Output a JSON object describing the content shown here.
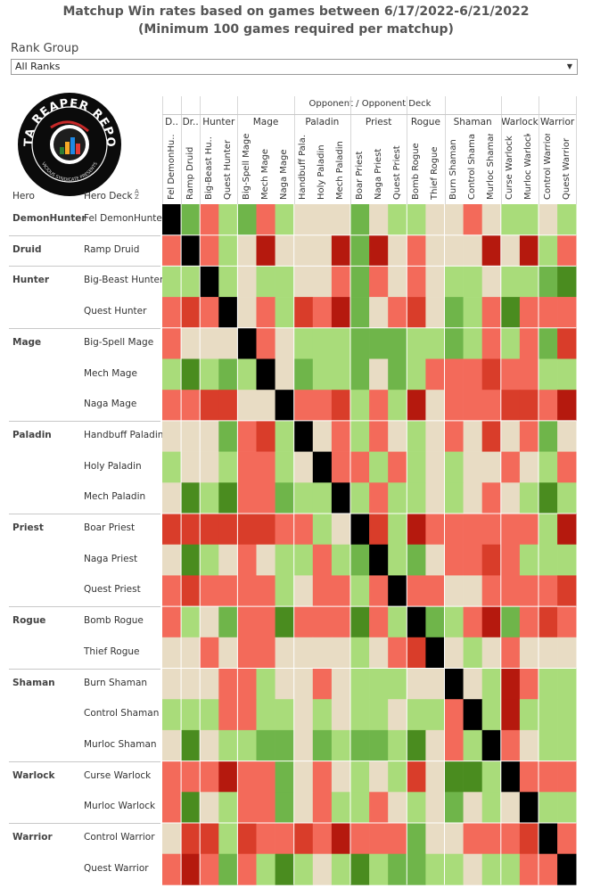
{
  "title_line1": "Matchup Win rates based on games between 6/17/2022-6/21/2022",
  "title_line2": "(Minimum 100 games required per matchup)",
  "filter": {
    "label": "Rank Group",
    "value": "All Ranks"
  },
  "logo": {
    "text_top": "DATA REAPER REPORT",
    "text_bottom": "VICIOUS SYNDICATE PRESENTS"
  },
  "chart_data": {
    "type": "heatmap",
    "title": "Matchup Win rates based on games between 6/17/2022-6/21/2022",
    "subtitle": "(Minimum 100 games required per matchup)",
    "column_header": "Opponent / Opponent Deck",
    "row_headers": {
      "hero": "Hero",
      "deck": "Hero Deck"
    },
    "groups": [
      {
        "hero": "DemonHunter",
        "label": "D..",
        "decks": [
          "Fel DemonHunter"
        ]
      },
      {
        "hero": "Druid",
        "label": "Dr..",
        "decks": [
          "Ramp Druid"
        ]
      },
      {
        "hero": "Hunter",
        "label": "Hunter",
        "decks": [
          "Big-Beast Hunter",
          "Quest Hunter"
        ]
      },
      {
        "hero": "Mage",
        "label": "Mage",
        "decks": [
          "Big-Spell Mage",
          "Mech Mage",
          "Naga Mage"
        ]
      },
      {
        "hero": "Paladin",
        "label": "Paladin",
        "decks": [
          "Handbuff Paladin",
          "Holy Paladin",
          "Mech Paladin"
        ]
      },
      {
        "hero": "Priest",
        "label": "Priest",
        "decks": [
          "Boar Priest",
          "Naga Priest",
          "Quest Priest"
        ]
      },
      {
        "hero": "Rogue",
        "label": "Rogue",
        "decks": [
          "Bomb Rogue",
          "Thief Rogue"
        ]
      },
      {
        "hero": "Shaman",
        "label": "Shaman",
        "decks": [
          "Burn Shaman",
          "Control Shaman",
          "Murloc Shaman"
        ]
      },
      {
        "hero": "Warlock",
        "label": "Warlock",
        "decks": [
          "Curse Warlock",
          "Murloc Warlock"
        ]
      },
      {
        "hero": "Warrior",
        "label": "Warrior",
        "decks": [
          "Control Warrior",
          "Quest Warrior"
        ]
      }
    ],
    "column_labels": [
      "Fel DemonHu..",
      "Ramp Druid",
      "Big-Beast Hu..",
      "Quest Hunter",
      "Big-Spell Mage",
      "Mech Mage",
      "Naga Mage",
      "Handbuff Pala..",
      "Holy Paladin",
      "Mech Paladin",
      "Boar Priest",
      "Naga Priest",
      "Quest Priest",
      "Bomb Rogue",
      "Thief Rogue",
      "Burn Shaman",
      "Control Shaman",
      "Murloc Shaman",
      "Curse Warlock",
      "Murloc Warlock",
      "Control Warrior",
      "Quest Warrior"
    ],
    "color_scale": {
      "levels": [
        -3,
        -2,
        -1,
        0,
        1,
        2,
        3
      ],
      "colors": [
        "#b5190e",
        "#d93d2a",
        "#f36a5a",
        "#e8dcc4",
        "#a9dc7a",
        "#6fb54a",
        "#4a8c1f"
      ],
      "mirror": "#000000"
    },
    "matrix": [
      [
        "M",
        2,
        -1,
        1,
        2,
        -1,
        1,
        0,
        0,
        0,
        2,
        0,
        1,
        1,
        0,
        0,
        -1,
        0,
        1,
        1,
        0,
        1
      ],
      [
        -1,
        "M",
        -1,
        1,
        0,
        -3,
        0,
        0,
        0,
        -3,
        2,
        -3,
        0,
        -1,
        0,
        0,
        0,
        -3,
        0,
        -3,
        1,
        -1
      ],
      [
        1,
        1,
        "M",
        1,
        0,
        1,
        1,
        0,
        0,
        -1,
        2,
        -1,
        0,
        -1,
        0,
        1,
        1,
        0,
        1,
        1,
        2,
        3
      ],
      [
        -1,
        -2,
        -1,
        "M",
        0,
        -1,
        1,
        -2,
        -1,
        -3,
        2,
        0,
        -1,
        -2,
        0,
        2,
        1,
        -1,
        3,
        -1,
        -1,
        -1
      ],
      [
        -1,
        0,
        0,
        0,
        "M",
        -1,
        0,
        1,
        1,
        1,
        2,
        2,
        2,
        1,
        1,
        2,
        1,
        -1,
        1,
        -1,
        2,
        -2
      ],
      [
        1,
        3,
        1,
        2,
        1,
        "M",
        0,
        2,
        1,
        1,
        2,
        0,
        2,
        1,
        -1,
        -1,
        -1,
        -2,
        -1,
        -1,
        1,
        1
      ],
      [
        -1,
        -1,
        -2,
        -2,
        0,
        0,
        "M",
        -1,
        -1,
        -2,
        1,
        -1,
        1,
        -3,
        0,
        -1,
        -1,
        -1,
        -2,
        -2,
        -1,
        -3
      ],
      [
        0,
        0,
        0,
        2,
        -1,
        -2,
        1,
        "M",
        0,
        -1,
        1,
        -1,
        0,
        1,
        0,
        -1,
        0,
        -2,
        0,
        -1,
        2,
        0
      ],
      [
        1,
        0,
        0,
        1,
        -1,
        -1,
        1,
        0,
        "M",
        -1,
        -1,
        1,
        -1,
        1,
        0,
        1,
        0,
        0,
        -1,
        0,
        1,
        -1
      ],
      [
        0,
        3,
        1,
        3,
        -1,
        -1,
        2,
        1,
        1,
        "M",
        1,
        -1,
        1,
        1,
        0,
        1,
        0,
        -1,
        0,
        1,
        3,
        1
      ],
      [
        -2,
        -2,
        -2,
        -2,
        -2,
        -2,
        -1,
        -1,
        1,
        0,
        "M",
        -2,
        1,
        -3,
        -1,
        -1,
        -1,
        -1,
        -1,
        -1,
        1,
        -3
      ],
      [
        0,
        3,
        1,
        0,
        -1,
        0,
        1,
        1,
        -1,
        1,
        2,
        "M",
        1,
        2,
        0,
        -1,
        -1,
        -2,
        -1,
        1,
        1,
        1
      ],
      [
        -1,
        -2,
        -1,
        -1,
        -1,
        -1,
        1,
        0,
        -1,
        -1,
        1,
        -1,
        "M",
        -1,
        -1,
        0,
        0,
        -1,
        -1,
        -1,
        -1,
        -2
      ],
      [
        -1,
        1,
        0,
        2,
        -1,
        -1,
        3,
        -1,
        -1,
        -1,
        3,
        -1,
        1,
        "M",
        2,
        1,
        -1,
        -3,
        2,
        -1,
        -2,
        -1
      ],
      [
        0,
        0,
        -1,
        0,
        -1,
        -1,
        0,
        0,
        0,
        0,
        1,
        0,
        -1,
        -2,
        "M",
        0,
        1,
        0,
        -1,
        0,
        0,
        0
      ],
      [
        0,
        0,
        0,
        -1,
        -1,
        1,
        0,
        0,
        -1,
        0,
        1,
        1,
        1,
        0,
        0,
        "M",
        0,
        1,
        -3,
        -1,
        1,
        1
      ],
      [
        1,
        1,
        1,
        -1,
        -1,
        1,
        1,
        0,
        1,
        0,
        1,
        1,
        0,
        1,
        1,
        -1,
        "M",
        1,
        -3,
        1,
        1,
        1
      ],
      [
        0,
        3,
        0,
        1,
        1,
        2,
        2,
        0,
        2,
        1,
        2,
        2,
        1,
        3,
        0,
        -1,
        1,
        "M",
        -1,
        0,
        1,
        1
      ],
      [
        -1,
        -1,
        -1,
        -3,
        -1,
        -1,
        2,
        0,
        -1,
        0,
        1,
        0,
        1,
        -2,
        0,
        3,
        3,
        1,
        "M",
        -1,
        -1,
        -1
      ],
      [
        -1,
        3,
        0,
        1,
        -1,
        -1,
        2,
        0,
        -1,
        1,
        1,
        -1,
        0,
        1,
        0,
        2,
        0,
        1,
        0,
        "M",
        1,
        1
      ],
      [
        0,
        -2,
        -2,
        1,
        -2,
        -1,
        -1,
        -2,
        -1,
        -3,
        -1,
        -1,
        -1,
        2,
        0,
        0,
        -1,
        -1,
        -1,
        -2,
        "M",
        -1
      ],
      [
        -1,
        -3,
        -1,
        2,
        -1,
        1,
        3,
        1,
        0,
        1,
        3,
        1,
        2,
        2,
        1,
        1,
        0,
        1,
        1,
        -1,
        -1,
        "M"
      ]
    ]
  }
}
